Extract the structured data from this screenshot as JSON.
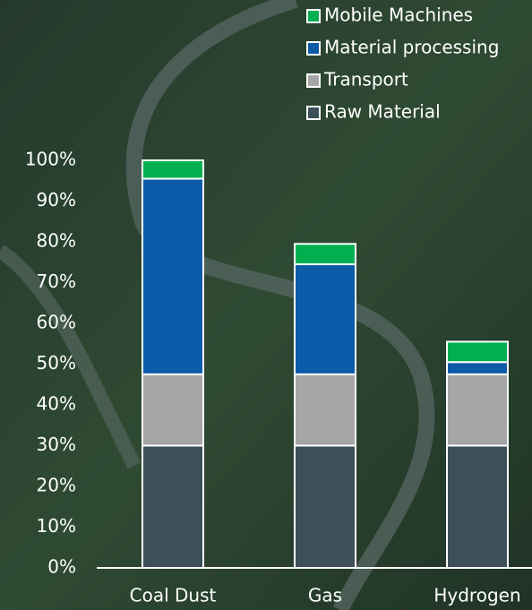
{
  "chart_data": {
    "type": "stacked_bar",
    "categories": [
      "Coal Dust",
      "Gas",
      "Hydrogen"
    ],
    "series": [
      {
        "name": "Raw Material",
        "color": "#3d4f58",
        "values": [
          30,
          30,
          30
        ]
      },
      {
        "name": "Transport",
        "color": "#a6a6a6",
        "values": [
          17.5,
          17.5,
          17.5
        ]
      },
      {
        "name": "Material processing",
        "color": "#0b5ba8",
        "values": [
          48,
          27,
          3
        ]
      },
      {
        "name": "Mobile Machines",
        "color": "#00b050",
        "values": [
          4.5,
          5,
          5
        ]
      }
    ],
    "ylim": [
      0,
      100
    ],
    "yticks": [
      {
        "value": 0,
        "label": "0%"
      },
      {
        "value": 10,
        "label": "10%"
      },
      {
        "value": 20,
        "label": "20%"
      },
      {
        "value": 30,
        "label": "30%"
      },
      {
        "value": 40,
        "label": "40%"
      },
      {
        "value": 50,
        "label": "50%"
      },
      {
        "value": 60,
        "label": "60%"
      },
      {
        "value": 70,
        "label": "70%"
      },
      {
        "value": 80,
        "label": "80%"
      },
      {
        "value": 90,
        "label": "90%"
      },
      {
        "value": 100,
        "label": "100%"
      }
    ],
    "legend": "top-right"
  }
}
